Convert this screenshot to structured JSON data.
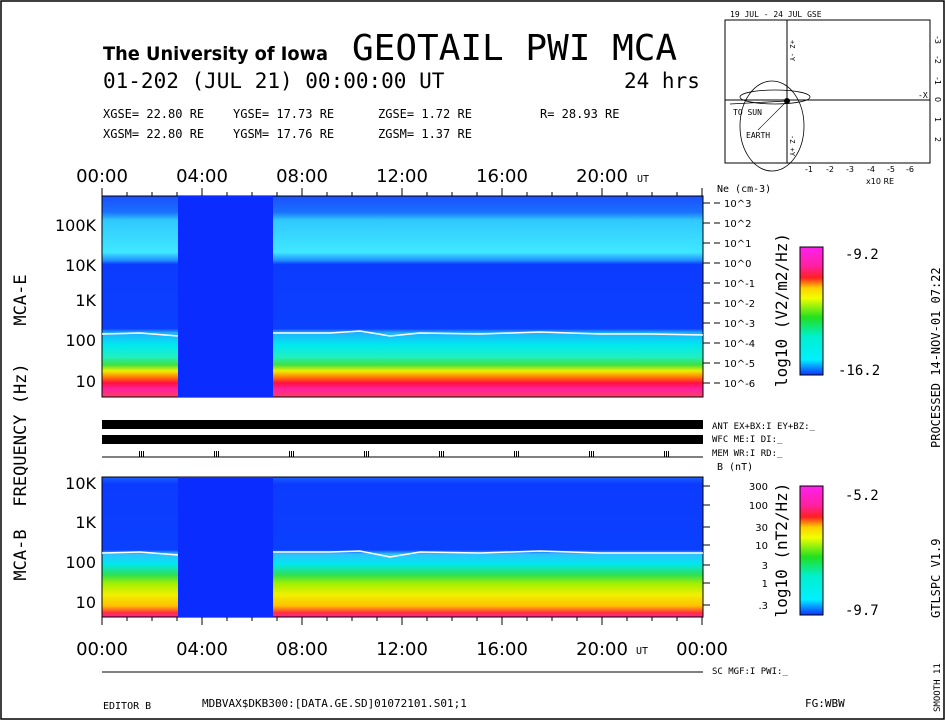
{
  "header": {
    "institution": "The University of Iowa",
    "title": "GEOTAIL PWI MCA",
    "date_line": "01-202 (JUL 21) 00:00:00 UT",
    "duration": "24 hrs",
    "gse": {
      "x": "XGSE= 22.80 RE",
      "y": "YGSE= 17.73 RE",
      "z": "ZGSE= 1.72 RE",
      "r": "R= 28.93 RE"
    },
    "gsm": {
      "x": "XGSM= 22.80 RE",
      "y": "YGSM= 17.76 RE",
      "z": "ZGSM= 1.37 RE"
    }
  },
  "orbit": {
    "title": "19 JUL - 24 JUL  GSE",
    "top_axis": "+Z -Y",
    "bottom_axis": "-Z +Y",
    "right_axis": "-X",
    "sun_label": "TO SUN",
    "earth_label": "EARTH",
    "x_ticks": [
      "-1",
      "-2",
      "-3",
      "-4",
      "-5",
      "-6"
    ],
    "y_ticks": [
      "-3",
      "-2",
      "-1",
      "0",
      "1",
      "2"
    ],
    "x_unit": "x10 RE"
  },
  "time_axis": {
    "labels_top": [
      "00:00",
      "04:00",
      "08:00",
      "12:00",
      "16:00",
      "20:00"
    ],
    "labels_bottom": [
      "00:00",
      "04:00",
      "08:00",
      "12:00",
      "16:00",
      "20:00",
      "00:00"
    ],
    "ut": "UT"
  },
  "status": {
    "ant": "ANT EX+BX:I  EY+BZ:_",
    "wfc": "WFC ME:I     DI:_",
    "mem": "MEM WR:I     RD:_",
    "sc": "SC MGF:I    PWI:_"
  },
  "footer": {
    "editor": "EDITOR B",
    "file": "MDBVAX$DKB300:[DATA.GE.SD]01072101.S01;1",
    "fg": "FG:WBW",
    "processed": "PROCESSED 14-NOV-01  07:22",
    "version": "GTLSPC  V1.9",
    "smooth": "SMOOTH 11"
  },
  "colors": {
    "gap": "#0a2cff",
    "bg_blue": "#0b3bff",
    "line": "#ffffff"
  },
  "chart_data": [
    {
      "type": "heatmap",
      "title": "MCA-E",
      "ylabel": "FREQUENCY (Hz)",
      "y_ticks": [
        "100K",
        "10K",
        "1K",
        "100",
        "10"
      ],
      "x_ticks": [
        "00:00",
        "04:00",
        "08:00",
        "12:00",
        "16:00",
        "20:00"
      ],
      "xlim_hours": [
        0,
        24
      ],
      "data_gap_hours": [
        3.0,
        6.8
      ],
      "right_axis_title": "Ne (cm-3)",
      "right_axis_ticks": [
        "10^3",
        "10^2",
        "10^1",
        "10^0",
        "10^-1",
        "10^-2",
        "10^-3",
        "10^-4",
        "10^-5",
        "10^-6"
      ],
      "colorbar": {
        "label": "log10 (V2/m2/Hz)",
        "max": "-9.2",
        "min": "-16.2"
      }
    },
    {
      "type": "heatmap",
      "title": "MCA-B",
      "y_ticks": [
        "10K",
        "1K",
        "100",
        "10"
      ],
      "x_ticks": [
        "00:00",
        "04:00",
        "08:00",
        "12:00",
        "16:00",
        "20:00",
        "00:00"
      ],
      "xlim_hours": [
        0,
        24
      ],
      "data_gap_hours": [
        3.0,
        6.8
      ],
      "right_axis_title": "B (nT)",
      "right_axis_ticks": [
        "300",
        "100",
        "30",
        "10",
        "3",
        "1",
        ".3"
      ],
      "colorbar": {
        "label": "log10 (nT2/Hz)",
        "max": "-5.2",
        "min": "-9.7"
      }
    }
  ]
}
